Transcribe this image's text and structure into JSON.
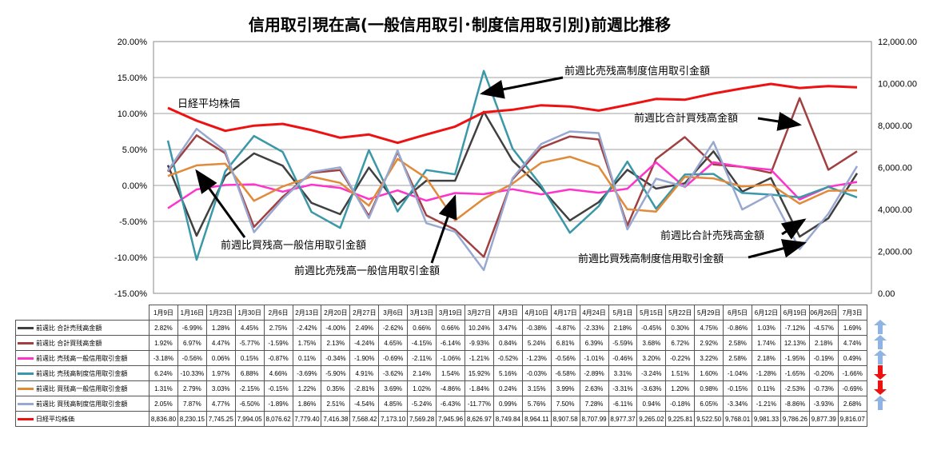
{
  "chart_data": {
    "type": "line",
    "title": "信用取引現在高(一般信用取引･制度信用取引別)前週比推移",
    "categories": [
      "1月9日",
      "1月16日",
      "1月23日",
      "1月30日",
      "2月6日",
      "2月13日",
      "2月20日",
      "2月27日",
      "3月6日",
      "3月13日",
      "3月19日",
      "3月27日",
      "4月3日",
      "4月10日",
      "4月17日",
      "4月24日",
      "5月1日",
      "5月15日",
      "5月22日",
      "5月29日",
      "6月5日",
      "6月12日",
      "6月19日",
      "06月26日",
      "7月3日"
    ],
    "y_left": {
      "min": -15,
      "max": 20,
      "step": 5,
      "tick_labels": [
        "-15.00%",
        "-10.00%",
        "-5.00%",
        "0.00%",
        "5.00%",
        "10.00%",
        "15.00%",
        "20.00%"
      ]
    },
    "y_right": {
      "min": 0,
      "max": 12000,
      "step": 2000,
      "tick_labels": [
        "0.00",
        "2,000.00",
        "4,000.00",
        "6,000.00",
        "8,000.00",
        "10,000.00",
        "12,000.00"
      ]
    },
    "series": [
      {
        "name": "前週比 合計売残高金額",
        "color": "#404040",
        "axis": "left",
        "values": [
          2.82,
          -6.99,
          1.28,
          4.45,
          2.75,
          -2.42,
          -4.0,
          2.49,
          -2.62,
          0.66,
          0.66,
          10.24,
          3.47,
          -0.38,
          -4.87,
          -2.33,
          2.18,
          -0.45,
          0.3,
          4.75,
          -0.86,
          1.03,
          -7.12,
          -4.57,
          1.69
        ],
        "display": [
          "2.82%",
          "-6.99%",
          "1.28%",
          "4.45%",
          "2.75%",
          "-2.42%",
          "-4.00%",
          "2.49%",
          "-2.62%",
          "0.66%",
          "0.66%",
          "10.24%",
          "3.47%",
          "-0.38%",
          "-4.87%",
          "-2.33%",
          "2.18%",
          "-0.45%",
          "0.30%",
          "4.75%",
          "-0.86%",
          "1.03%",
          "-7.12%",
          "-4.57%",
          "1.69%"
        ]
      },
      {
        "name": "前週比 合計買残高金額",
        "color": "#a04040",
        "axis": "left",
        "values": [
          1.92,
          6.97,
          4.47,
          -5.77,
          -1.59,
          1.75,
          2.13,
          -4.24,
          4.65,
          -4.15,
          -6.14,
          -9.93,
          0.84,
          5.24,
          6.81,
          6.39,
          -5.59,
          3.68,
          6.72,
          2.92,
          2.58,
          1.74,
          12.13,
          2.18,
          4.74
        ],
        "display": [
          "1.92%",
          "6.97%",
          "4.47%",
          "-5.77%",
          "-1.59%",
          "1.75%",
          "2.13%",
          "-4.24%",
          "4.65%",
          "-4.15%",
          "-6.14%",
          "-9.93%",
          "0.84%",
          "5.24%",
          "6.81%",
          "6.39%",
          "-5.59%",
          "3.68%",
          "6.72%",
          "2.92%",
          "2.58%",
          "1.74%",
          "12.13%",
          "2.18%",
          "4.74%"
        ]
      },
      {
        "name": "前週比 売残高一般信用取引金額",
        "color": "#ff33cc",
        "axis": "left",
        "values": [
          -3.18,
          -0.56,
          0.06,
          0.15,
          -0.87,
          0.11,
          -0.34,
          -1.9,
          -0.69,
          -2.11,
          -1.06,
          -1.21,
          -0.52,
          -1.23,
          -0.56,
          -1.01,
          -0.46,
          3.2,
          -0.22,
          3.22,
          2.58,
          2.18,
          -1.95,
          -0.19,
          0.49
        ],
        "display": [
          "-3.18%",
          "-0.56%",
          "0.06%",
          "0.15%",
          "-0.87%",
          "0.11%",
          "-0.34%",
          "-1.90%",
          "-0.69%",
          "-2.11%",
          "-1.06%",
          "-1.21%",
          "-0.52%",
          "-1.23%",
          "-0.56%",
          "-1.01%",
          "-0.46%",
          "3.20%",
          "-0.22%",
          "3.22%",
          "2.58%",
          "2.18%",
          "-1.95%",
          "-0.19%",
          "0.49%"
        ]
      },
      {
        "name": "前週比 売残高制度信用取引金額",
        "color": "#3a98a8",
        "axis": "left",
        "values": [
          6.24,
          -10.33,
          1.97,
          6.88,
          4.66,
          -3.69,
          -5.9,
          4.91,
          -3.62,
          2.14,
          1.54,
          15.92,
          5.16,
          -0.03,
          -6.58,
          -2.89,
          3.31,
          -3.24,
          1.51,
          1.6,
          -1.04,
          -1.28,
          -1.65,
          -0.2,
          -1.66
        ],
        "display": [
          "6.24%",
          "-10.33%",
          "1.97%",
          "6.88%",
          "4.66%",
          "-3.69%",
          "-5.90%",
          "4.91%",
          "-3.62%",
          "2.14%",
          "1.54%",
          "15.92%",
          "5.16%",
          "-0.03%",
          "-6.58%",
          "-2.89%",
          "3.31%",
          "-3.24%",
          "1.51%",
          "1.60%",
          "-1.04%",
          "-1.28%",
          "-1.65%",
          "-0.20%",
          "-1.66%"
        ]
      },
      {
        "name": "前週比 買残高一般信用取引金額",
        "color": "#e08a3a",
        "axis": "left",
        "values": [
          1.31,
          2.79,
          3.03,
          -2.15,
          -0.15,
          1.22,
          0.35,
          -2.81,
          3.69,
          1.02,
          -4.86,
          -1.84,
          0.24,
          3.15,
          3.99,
          2.63,
          -3.31,
          -3.63,
          1.2,
          0.98,
          -0.15,
          0.11,
          -2.53,
          -0.73,
          -0.69
        ],
        "display": [
          "1.31%",
          "2.79%",
          "3.03%",
          "-2.15%",
          "-0.15%",
          "1.22%",
          "0.35%",
          "-2.81%",
          "3.69%",
          "1.02%",
          "-4.86%",
          "-1.84%",
          "0.24%",
          "3.15%",
          "3.99%",
          "2.63%",
          "-3.31%",
          "-3.63%",
          "1.20%",
          "0.98%",
          "-0.15%",
          "0.11%",
          "-2.53%",
          "-0.73%",
          "-0.69%"
        ]
      },
      {
        "name": "前週比 買残高制度信用取引金額",
        "color": "#98a8d0",
        "axis": "left",
        "values": [
          2.05,
          7.87,
          4.77,
          -6.5,
          -1.89,
          1.86,
          2.51,
          -4.54,
          4.85,
          -5.24,
          -6.43,
          -11.77,
          0.99,
          5.76,
          7.5,
          7.28,
          -6.11,
          0.94,
          -0.18,
          6.05,
          -3.34,
          -1.21,
          -8.86,
          -3.93,
          2.68
        ],
        "display": [
          "2.05%",
          "7.87%",
          "4.77%",
          "-6.50%",
          "-1.89%",
          "1.86%",
          "2.51%",
          "-4.54%",
          "4.85%",
          "-5.24%",
          "-6.43%",
          "-11.77%",
          "0.99%",
          "5.76%",
          "7.50%",
          "7.28%",
          "-6.11%",
          "0.94%",
          "-0.18%",
          "6.05%",
          "-3.34%",
          "-1.21%",
          "-8.86%",
          "-3.93%",
          "2.68%"
        ]
      },
      {
        "name": "日経平均株価",
        "color": "#ee1111",
        "axis": "right",
        "values": [
          8836.8,
          8230.15,
          7745.25,
          7994.05,
          8076.62,
          7779.4,
          7416.38,
          7568.42,
          7173.1,
          7569.28,
          7945.96,
          8626.97,
          8749.84,
          8964.11,
          8907.58,
          8707.99,
          8977.37,
          9265.02,
          9225.81,
          9522.5,
          9768.01,
          9981.33,
          9786.26,
          9877.39,
          9816.07
        ],
        "display": [
          "8,836.80",
          "8,230.15",
          "7,745.25",
          "7,994.05",
          "8,076.62",
          "7,779.40",
          "7,416.38",
          "7,568.42",
          "7,173.10",
          "7,569.28",
          "7,945.96",
          "8,626.97",
          "8,749.84",
          "8,964.11",
          "8,907.58",
          "8,707.99",
          "8,977.37",
          "9,265.02",
          "9,225.81",
          "9,522.50",
          "9,768.01",
          "9,981.33",
          "9,786.26",
          "9,877.39",
          "9,816.07"
        ]
      }
    ],
    "annotations": [
      "日経平均株価",
      "前週比売残高制度信用取引金額",
      "前週比合計買残高金額",
      "前週比買残高一般信用取引金額",
      "前週比売残高一般信用取引金額",
      "前週比合計売残高金額",
      "前週比買残高制度信用取引金額"
    ],
    "trend_arrows": [
      {
        "direction": "up",
        "color": "#8fb4e3"
      },
      {
        "direction": "up",
        "color": "#8fb4e3"
      },
      {
        "direction": "up",
        "color": "#8fb4e3"
      },
      {
        "direction": "down",
        "color": "#ee1111"
      },
      {
        "direction": "down",
        "color": "#ee1111"
      },
      {
        "direction": "up",
        "color": "#8fb4e3"
      }
    ]
  }
}
